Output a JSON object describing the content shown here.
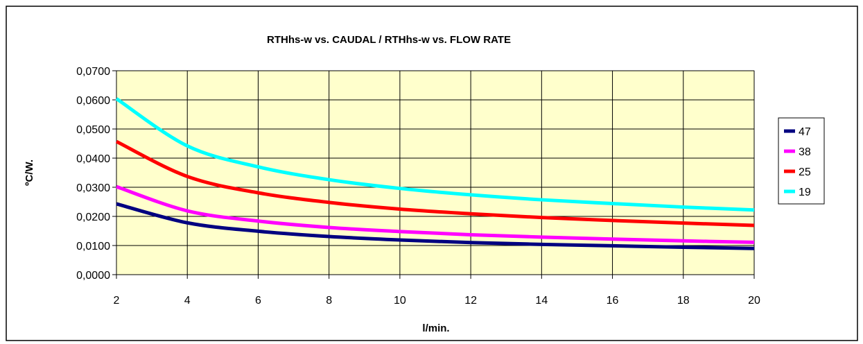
{
  "chart_data": {
    "type": "line",
    "title": "RTHhs-w vs. CAUDAL / RTHhs-w vs. FLOW RATE",
    "xlabel": "l/min.",
    "ylabel": "ºC/W.",
    "xlim": [
      2,
      20
    ],
    "ylim": [
      0,
      0.07
    ],
    "x_ticks": [
      "2",
      "4",
      "6",
      "8",
      "10",
      "12",
      "14",
      "16",
      "18",
      "20"
    ],
    "y_ticks": [
      "0,0000",
      "0,0100",
      "0,0200",
      "0,0300",
      "0,0400",
      "0,0500",
      "0,0600",
      "0,0700"
    ],
    "grid": true,
    "legend_position": "right",
    "plot_background": "#ffffcc",
    "x": [
      2,
      4,
      6,
      8,
      10,
      12,
      14,
      16,
      18,
      20
    ],
    "series": [
      {
        "name": "47",
        "color": "#000080",
        "values": [
          0.0243,
          0.0178,
          0.0149,
          0.0131,
          0.0119,
          0.011,
          0.0104,
          0.0099,
          0.0094,
          0.009
        ]
      },
      {
        "name": "38",
        "color": "#ff00ff",
        "values": [
          0.0302,
          0.0219,
          0.0184,
          0.0162,
          0.0148,
          0.0137,
          0.0129,
          0.0122,
          0.0116,
          0.0111
        ]
      },
      {
        "name": "25",
        "color": "#ff0000",
        "values": [
          0.0457,
          0.0337,
          0.0281,
          0.0248,
          0.0225,
          0.0209,
          0.0196,
          0.0186,
          0.0177,
          0.0169
        ]
      },
      {
        "name": "19",
        "color": "#00ffff",
        "values": [
          0.0604,
          0.0442,
          0.037,
          0.0326,
          0.0296,
          0.0274,
          0.0257,
          0.0244,
          0.0232,
          0.0222
        ]
      }
    ]
  }
}
